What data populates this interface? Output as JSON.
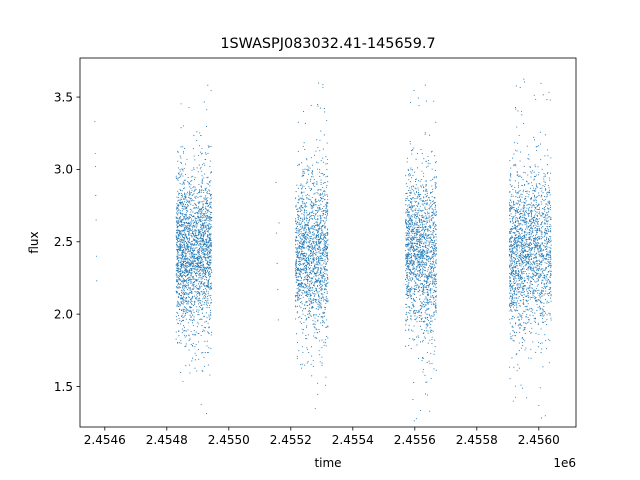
{
  "chart_data": {
    "type": "scatter",
    "title": "1SWASPJ083032.41-145659.7",
    "xlabel": "time",
    "ylabel": "flux",
    "x_offset_label": "1e6",
    "xlim": [
      2454520,
      2456120
    ],
    "ylim": [
      1.22,
      3.77
    ],
    "x_ticks": [
      {
        "value": 2454600,
        "label": "2.4546"
      },
      {
        "value": 2454800,
        "label": "2.4548"
      },
      {
        "value": 2455000,
        "label": "2.4550"
      },
      {
        "value": 2455200,
        "label": "2.4552"
      },
      {
        "value": 2455400,
        "label": "2.4554"
      },
      {
        "value": 2455600,
        "label": "2.4556"
      },
      {
        "value": 2455800,
        "label": "2.4558"
      },
      {
        "value": 2456000,
        "label": "2.4560"
      }
    ],
    "y_ticks": [
      {
        "value": 1.5,
        "label": "1.5"
      },
      {
        "value": 2.0,
        "label": "2.0"
      },
      {
        "value": 2.5,
        "label": "2.5"
      },
      {
        "value": 3.0,
        "label": "3.0"
      },
      {
        "value": 3.5,
        "label": "3.5"
      }
    ],
    "grid": false,
    "marker_color": "#1f77b4",
    "series": [
      {
        "points": [
          [
            2454568,
            3.33
          ],
          [
            2454569,
            3.11
          ],
          [
            2454570,
            3.02
          ],
          [
            2454571,
            2.82
          ],
          [
            2454572,
            2.65
          ],
          [
            2454573,
            2.4
          ],
          [
            2454574,
            2.23
          ],
          [
            2455152,
            2.91
          ],
          [
            2455154,
            2.56
          ],
          [
            2455156,
            2.35
          ],
          [
            2455158,
            2.17
          ],
          [
            2455160,
            1.96
          ],
          [
            2455162,
            2.63
          ],
          [
            2455251,
            1.83
          ],
          [
            2455253,
            2.06
          ]
        ]
      }
    ],
    "clusters": [
      {
        "x_range": [
          2454830,
          2454860
        ],
        "y_center": 2.43,
        "y_spread": 0.26,
        "y_min": 1.48,
        "y_max": 3.57,
        "count": 650
      },
      {
        "x_range": [
          2454860,
          2454905
        ],
        "y_center": 2.41,
        "y_spread": 0.26,
        "y_min": 1.55,
        "y_max": 3.45,
        "count": 800
      },
      {
        "x_range": [
          2454905,
          2454945
        ],
        "y_center": 2.45,
        "y_spread": 0.27,
        "y_min": 1.28,
        "y_max": 3.63,
        "count": 750
      },
      {
        "x_range": [
          2455215,
          2455265
        ],
        "y_center": 2.43,
        "y_spread": 0.25,
        "y_min": 1.55,
        "y_max": 3.4,
        "count": 750
      },
      {
        "x_range": [
          2455265,
          2455320
        ],
        "y_center": 2.42,
        "y_spread": 0.28,
        "y_min": 1.27,
        "y_max": 3.65,
        "count": 850
      },
      {
        "x_range": [
          2455570,
          2455615
        ],
        "y_center": 2.45,
        "y_spread": 0.26,
        "y_min": 1.25,
        "y_max": 3.55,
        "count": 750
      },
      {
        "x_range": [
          2455615,
          2455670
        ],
        "y_center": 2.4,
        "y_spread": 0.28,
        "y_min": 1.3,
        "y_max": 3.63,
        "count": 850
      },
      {
        "x_range": [
          2455905,
          2455955
        ],
        "y_center": 2.4,
        "y_spread": 0.28,
        "y_min": 1.32,
        "y_max": 3.63,
        "count": 850
      },
      {
        "x_range": [
          2455955,
          2456040
        ],
        "y_center": 2.45,
        "y_spread": 0.27,
        "y_min": 1.27,
        "y_max": 3.6,
        "count": 1100
      }
    ]
  }
}
